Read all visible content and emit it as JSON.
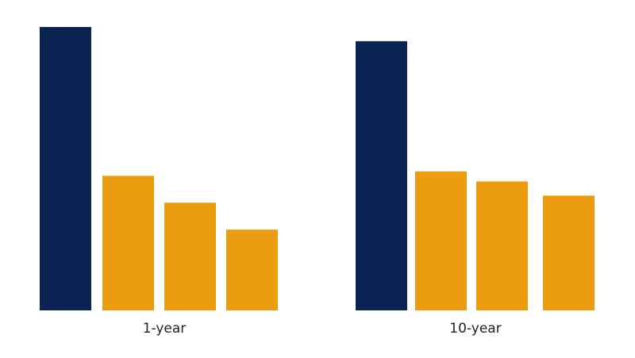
{
  "chart_data": {
    "type": "bar",
    "categories": [
      "1-year",
      "10-year"
    ],
    "series": [
      {
        "values": [
          10.0,
          9.5
        ],
        "color": "#0a2353"
      },
      {
        "values": [
          4.75,
          4.9
        ],
        "color": "#eb9c10"
      },
      {
        "values": [
          3.8,
          4.55
        ],
        "color": "#eb9c10"
      },
      {
        "values": [
          2.85,
          4.05
        ],
        "color": "#eb9c10"
      }
    ],
    "title": "",
    "xlabel": "",
    "ylabel": "",
    "ylim": [
      0,
      10
    ],
    "grid": false,
    "legend": "none"
  }
}
